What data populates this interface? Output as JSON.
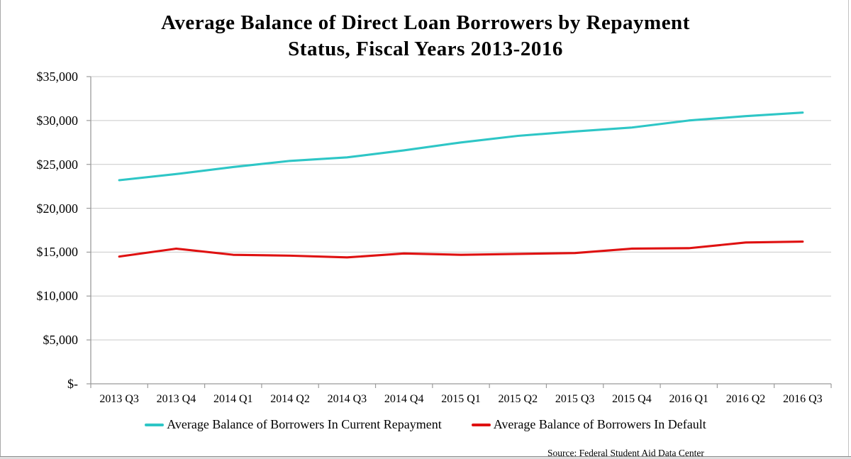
{
  "source_note": "Source: Federal Student Aid Data Center",
  "chart_data": {
    "type": "line",
    "title": "Average Balance of Direct Loan Borrowers by Repayment Status, Fiscal Years 2013-2016",
    "title_line1": "Average Balance of Direct Loan Borrowers by Repayment",
    "title_line2": "Status, Fiscal Years 2013-2016",
    "categories": [
      "2013 Q3",
      "2013 Q4",
      "2014 Q1",
      "2014 Q2",
      "2014 Q3",
      "2014 Q4",
      "2015 Q1",
      "2015 Q2",
      "2015 Q3",
      "2015 Q4",
      "2016 Q1",
      "2016 Q2",
      "2016 Q3"
    ],
    "series": [
      {
        "name": "Average Balance of Borrowers In Current Repayment",
        "color": "#2ec6c6",
        "values": [
          23200,
          23900,
          24700,
          25400,
          25800,
          26600,
          27500,
          28250,
          28750,
          29200,
          30000,
          30500,
          30900
        ]
      },
      {
        "name": "Average Balance of Borrowers In Default",
        "color": "#df1111",
        "values": [
          14500,
          15400,
          14700,
          14600,
          14400,
          14850,
          14700,
          14800,
          14900,
          15400,
          15450,
          16100,
          16200
        ]
      }
    ],
    "y_axis": {
      "min": 0,
      "max": 35000,
      "step": 5000,
      "tick_labels": [
        "$-",
        "$5,000",
        "$10,000",
        "$15,000",
        "$20,000",
        "$25,000",
        "$30,000",
        "$35,000"
      ]
    },
    "ylim": [
      0,
      35000
    ],
    "grid": "horizontal",
    "legend_position": "bottom",
    "colors": {
      "gridline": "#c9c9c9",
      "axis": "#9b9b9b",
      "text": "#000000"
    }
  }
}
